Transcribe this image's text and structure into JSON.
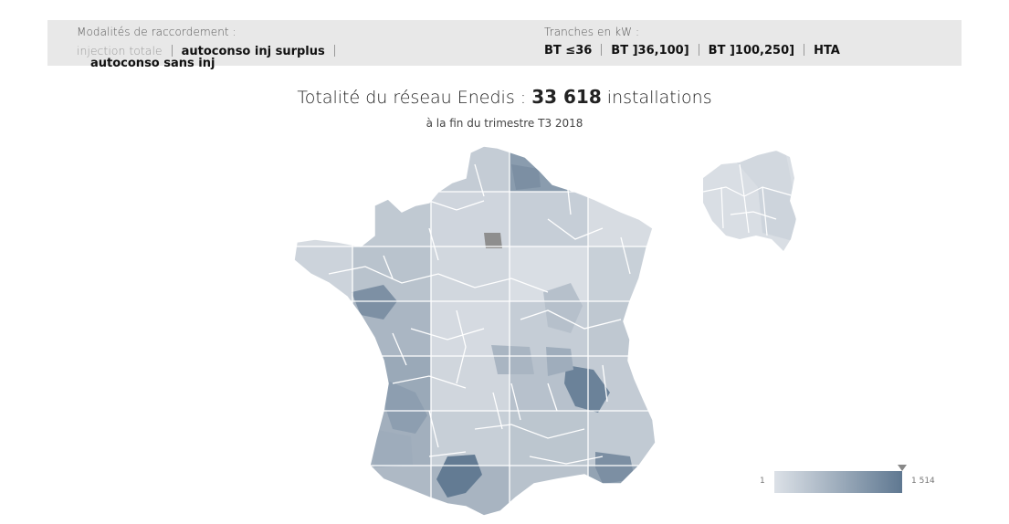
{
  "filters": {
    "modalites": {
      "label": "Modalités de raccordement :",
      "options": [
        "injection totale",
        "autoconso inj surplus",
        "autoconso sans inj"
      ]
    },
    "tranches": {
      "label": "Tranches en kW :",
      "options": [
        "BT ≤36",
        "BT ]36,100]",
        "BT ]100,250]",
        "HTA"
      ]
    }
  },
  "title": {
    "prefix": "Totalité du réseau Enedis : ",
    "count": "33 618",
    "suffix": " installations"
  },
  "subtitle": "à la fin du trimestre T3 2018",
  "legend": {
    "min": "1",
    "max": "1 514"
  },
  "colors": {
    "low": "#dce1e7",
    "high": "#5f7891",
    "border": "#ffffff"
  }
}
